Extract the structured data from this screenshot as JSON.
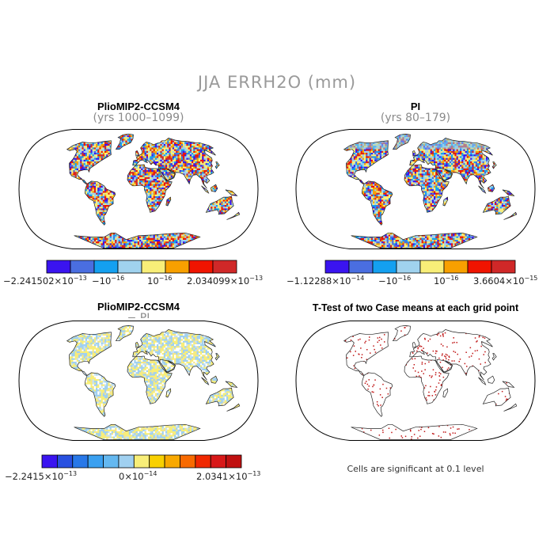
{
  "figure_title": "JJA ERRH2O (mm)",
  "panels": [
    {
      "id": "case",
      "title": "PlioMIP2-CCSM4",
      "subtitle": "(yrs 1000–1099)",
      "colorbar": {
        "colors": [
          "#3a14f0",
          "#4a6ee0",
          "#14a0f0",
          "#a0d2ee",
          "#f8ee78",
          "#f8a000",
          "#f01400",
          "#d02828"
        ],
        "labels": [
          {
            "base": "−2.241502×10",
            "exp": "−13"
          },
          {
            "base": "−10",
            "exp": "−16"
          },
          {
            "base": "10",
            "exp": "−16"
          },
          {
            "base": "2.034099×10",
            "exp": "−13"
          }
        ]
      }
    },
    {
      "id": "control",
      "title": "PI",
      "subtitle": "(yrs 80–179)",
      "colorbar": {
        "colors": [
          "#3a14f0",
          "#4a6ee0",
          "#14a0f0",
          "#a0d2ee",
          "#f8ee78",
          "#f8a000",
          "#f01400",
          "#d02828"
        ],
        "labels": [
          {
            "base": "−1.12288×10",
            "exp": "−14"
          },
          {
            "base": "−10",
            "exp": "−16"
          },
          {
            "base": "10",
            "exp": "−16"
          },
          {
            "base": "3.6604×10",
            "exp": "−15"
          }
        ]
      }
    },
    {
      "id": "diff",
      "title": "PlioMIP2-CCSM4",
      "subtitle": "− PI",
      "colorbar": {
        "colors": [
          "#3a14f0",
          "#2850e0",
          "#2878e8",
          "#3aa0f0",
          "#64b8f0",
          "#a0d0f0",
          "#f8ee78",
          "#f8d000",
          "#f8a800",
          "#f86a00",
          "#f02800",
          "#d81818",
          "#c01010"
        ],
        "labels": [
          {
            "base": "−2.2415×10",
            "exp": "−13"
          },
          {
            "base": "0×10",
            "exp": "−14"
          },
          {
            "base": "2.0341×10",
            "exp": "−13"
          }
        ]
      }
    },
    {
      "id": "ttest",
      "title": "T-Test of two Case means at each grid point",
      "note": "Cells are significant at 0.1 level"
    }
  ]
}
